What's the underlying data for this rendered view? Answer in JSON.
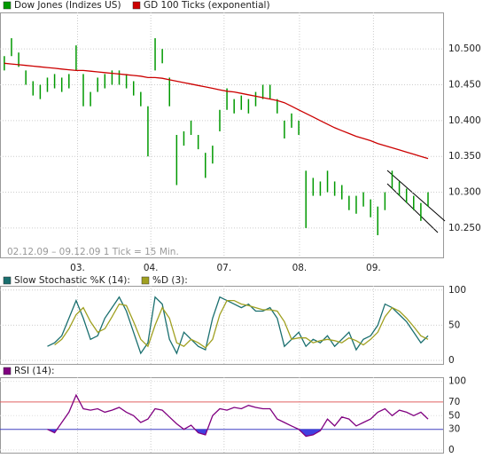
{
  "chart_data": [
    {
      "type": "range",
      "annotation": "02.12.09 – 09.12.09   1 Tick = 15 Min.",
      "xlim": [
        -0.6,
        61.1
      ],
      "xticks": [
        {
          "value": 10.2,
          "label": "03."
        },
        {
          "value": 20.4,
          "label": "04."
        },
        {
          "value": 30.6,
          "label": "07."
        },
        {
          "value": 41.1,
          "label": "08."
        },
        {
          "value": 51.4,
          "label": "09."
        }
      ],
      "ylim": [
        10209,
        10551
      ],
      "yticks": [
        {
          "value": 10250,
          "label": "10.250"
        },
        {
          "value": 10300,
          "label": "10.300"
        },
        {
          "value": 10350,
          "label": "10.350"
        },
        {
          "value": 10400,
          "label": "10.400"
        },
        {
          "value": 10450,
          "label": "10.450"
        },
        {
          "value": 10500,
          "label": "10.500"
        }
      ],
      "grid": true,
      "series": [
        {
          "name": "Dow Jones (Indizes US)",
          "color": "#009900",
          "high": [
            10490,
            10515,
            10495,
            10470,
            10455,
            10450,
            10460,
            10465,
            10460,
            10465,
            10505,
            10465,
            10440,
            10460,
            10465,
            10470,
            10470,
            10465,
            10455,
            10440,
            10420,
            10515,
            10500,
            10460,
            10380,
            10385,
            10400,
            10380,
            10355,
            10365,
            10415,
            10445,
            10430,
            10435,
            10430,
            10440,
            10450,
            10450,
            10430,
            10400,
            10410,
            10400,
            10330,
            10320,
            10315,
            10330,
            10315,
            10310,
            10295,
            10295,
            10300,
            10290,
            10280,
            10300,
            10330,
            10315,
            10305,
            10295,
            10285,
            10300
          ],
          "low": [
            10470,
            10490,
            10475,
            10450,
            10435,
            10430,
            10440,
            10445,
            10440,
            10445,
            10470,
            10420,
            10420,
            10440,
            10445,
            10450,
            10450,
            10445,
            10435,
            10420,
            10350,
            10470,
            10480,
            10420,
            10310,
            10365,
            10380,
            10360,
            10320,
            10340,
            10385,
            10415,
            10410,
            10415,
            10410,
            10420,
            10430,
            10430,
            10410,
            10375,
            10390,
            10380,
            10250,
            10295,
            10295,
            10300,
            10295,
            10290,
            10275,
            10270,
            10280,
            10265,
            10240,
            10275,
            10305,
            10295,
            10285,
            10275,
            10260,
            10280
          ]
        },
        {
          "name": "GD 100 Ticks (exponential)",
          "color": "#cc0000",
          "values": [
            10480,
            10479,
            10478,
            10477,
            10476,
            10475,
            10474,
            10473,
            10472,
            10471,
            10470,
            10470,
            10469,
            10468,
            10467,
            10466,
            10465,
            10464,
            10463,
            10462,
            10460,
            10460,
            10459,
            10457,
            10455,
            10453,
            10451,
            10449,
            10447,
            10445,
            10443,
            10441,
            10440,
            10438,
            10436,
            10434,
            10432,
            10430,
            10428,
            10425,
            10420,
            10415,
            10410,
            10405,
            10400,
            10395,
            10390,
            10386,
            10382,
            10378,
            10375,
            10372,
            10368,
            10365,
            10362,
            10359,
            10356,
            10353,
            10350,
            10347
          ]
        }
      ]
    },
    {
      "type": "line",
      "ylim": [
        -5,
        106
      ],
      "yticks": [
        0,
        50,
        100
      ],
      "grid": true,
      "series": [
        {
          "name": "Slow Stochastic %K (14):",
          "color": "#1a6f6f",
          "values": [
            null,
            null,
            null,
            null,
            null,
            null,
            20,
            25,
            35,
            60,
            85,
            60,
            30,
            35,
            60,
            75,
            90,
            70,
            40,
            10,
            25,
            90,
            80,
            30,
            10,
            40,
            30,
            20,
            15,
            60,
            90,
            85,
            80,
            75,
            80,
            70,
            70,
            75,
            60,
            20,
            30,
            40,
            20,
            30,
            25,
            35,
            20,
            30,
            40,
            15,
            30,
            35,
            50,
            80,
            75,
            65,
            55,
            40,
            25,
            35
          ]
        },
        {
          "name": "%D (3):",
          "color": "#a0a020",
          "values": [
            null,
            null,
            null,
            null,
            null,
            null,
            null,
            22,
            30,
            45,
            65,
            75,
            55,
            40,
            45,
            62,
            80,
            78,
            55,
            30,
            20,
            50,
            75,
            60,
            25,
            20,
            30,
            25,
            18,
            30,
            65,
            85,
            85,
            80,
            78,
            75,
            72,
            72,
            70,
            55,
            30,
            32,
            32,
            25,
            28,
            30,
            28,
            25,
            32,
            28,
            22,
            30,
            40,
            62,
            75,
            70,
            60,
            48,
            35,
            30
          ]
        }
      ]
    },
    {
      "type": "line",
      "ylim": [
        -4,
        106
      ],
      "yticks": [
        0,
        30,
        50,
        70,
        100
      ],
      "grid": true,
      "tick_colors": [
        "#dddddd",
        "#4040c0",
        "#dddddd",
        "#e06060",
        "#dddddd"
      ],
      "fill_below": 30,
      "fill_color": "#4040e0",
      "series": [
        {
          "name": "RSI (14):",
          "color": "#800080",
          "values": [
            null,
            null,
            null,
            null,
            null,
            null,
            30,
            25,
            40,
            55,
            80,
            60,
            58,
            60,
            55,
            58,
            62,
            55,
            50,
            40,
            45,
            60,
            58,
            48,
            38,
            30,
            36,
            25,
            22,
            50,
            60,
            58,
            62,
            60,
            65,
            62,
            60,
            60,
            45,
            40,
            35,
            30,
            20,
            22,
            28,
            45,
            35,
            48,
            45,
            35,
            40,
            45,
            55,
            60,
            50,
            58,
            55,
            50,
            55,
            45
          ]
        }
      ]
    }
  ]
}
